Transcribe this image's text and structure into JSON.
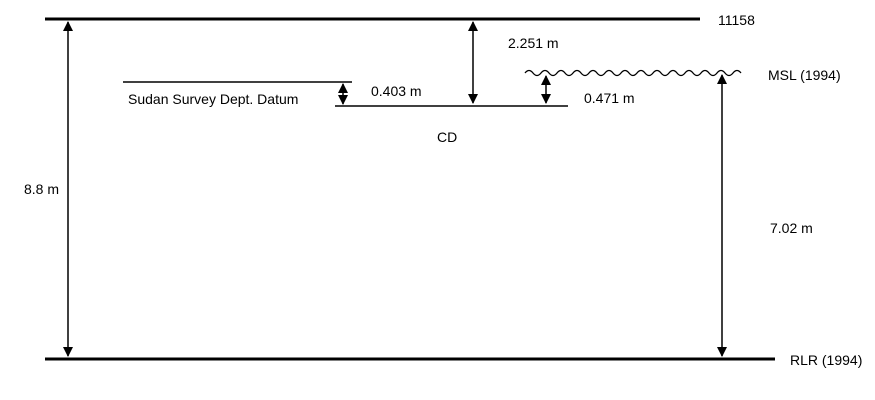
{
  "labels": {
    "top_benchmark": "11158",
    "msl": "MSL (1994)",
    "rlr": "RLR (1994)",
    "sudan_datum": "Sudan Survey Dept. Datum",
    "cd": "CD",
    "dim_total": "8.8 m",
    "dim_top_to_cd": "2.251 m",
    "dim_sudan_to_cd": "0.403 m",
    "dim_msl_to_cd": "0.471 m",
    "dim_msl_to_rlr": "7.02 m"
  },
  "colors": {
    "line": "#000000",
    "background": "#ffffff"
  }
}
